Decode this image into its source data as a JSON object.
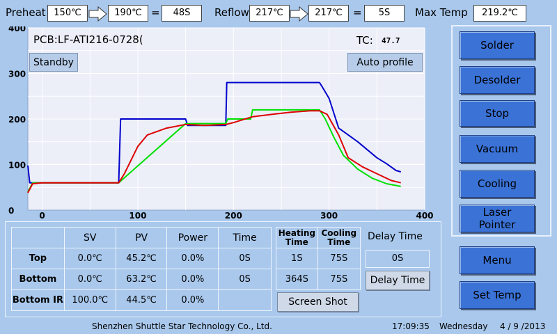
{
  "header": {
    "preheat_label": "Preheat",
    "preheat_start": "150℃",
    "preheat_end": "190℃",
    "equals": "=",
    "preheat_time": "48S",
    "reflow_label": "Reflow",
    "reflow_start": "217℃",
    "reflow_end": "217℃",
    "reflow_time": "5S",
    "maxtemp_label": "Max Temp",
    "maxtemp_value": "219.2℃"
  },
  "plot": {
    "pcb_label": "PCB:LF-ATI216-0728(",
    "tc_label": "TC:",
    "tc_value": "47.7",
    "standby_button": "Standby",
    "auto_profile_button": "Auto profile"
  },
  "chart_data": {
    "type": "line",
    "title": "",
    "xlabel": "",
    "ylabel": "",
    "xlim": [
      -15,
      400
    ],
    "ylim": [
      0,
      400
    ],
    "x_ticks": [
      "0",
      "100",
      "200",
      "300",
      "400"
    ],
    "y_ticks": [
      "0",
      "100",
      "200",
      "300",
      "400"
    ],
    "grid": true,
    "series": [
      {
        "color": "#0000cc",
        "points": [
          [
            -15,
            98
          ],
          [
            -13,
            60
          ],
          [
            0,
            60
          ],
          [
            80,
            60
          ],
          [
            82,
            200
          ],
          [
            150,
            200
          ],
          [
            152,
            186
          ],
          [
            192,
            186
          ],
          [
            193,
            280
          ],
          [
            290,
            280
          ],
          [
            293,
            270
          ],
          [
            300,
            245
          ],
          [
            310,
            180
          ],
          [
            330,
            150
          ],
          [
            350,
            115
          ],
          [
            360,
            102
          ],
          [
            370,
            87
          ],
          [
            375,
            84
          ]
        ]
      },
      {
        "color": "#00e000",
        "points": [
          [
            -15,
            40
          ],
          [
            -10,
            60
          ],
          [
            80,
            60
          ],
          [
            150,
            190
          ],
          [
            192,
            190
          ],
          [
            194,
            200
          ],
          [
            218,
            200
          ],
          [
            220,
            220
          ],
          [
            290,
            220
          ],
          [
            296,
            200
          ],
          [
            305,
            160
          ],
          [
            315,
            120
          ],
          [
            330,
            90
          ],
          [
            345,
            70
          ],
          [
            360,
            58
          ],
          [
            375,
            52
          ]
        ]
      },
      {
        "color": "#dd0000",
        "points": [
          [
            -15,
            38
          ],
          [
            -10,
            58
          ],
          [
            0,
            60
          ],
          [
            80,
            60
          ],
          [
            86,
            80
          ],
          [
            100,
            140
          ],
          [
            110,
            165
          ],
          [
            130,
            180
          ],
          [
            150,
            188
          ],
          [
            170,
            186
          ],
          [
            192,
            188
          ],
          [
            200,
            192
          ],
          [
            220,
            205
          ],
          [
            240,
            210
          ],
          [
            260,
            215
          ],
          [
            280,
            218
          ],
          [
            290,
            218
          ],
          [
            298,
            210
          ],
          [
            310,
            165
          ],
          [
            320,
            115
          ],
          [
            335,
            95
          ],
          [
            350,
            80
          ],
          [
            365,
            65
          ],
          [
            375,
            60
          ]
        ]
      }
    ]
  },
  "side_buttons": [
    "Solder",
    "Desolder",
    "Stop",
    "Vacuum",
    "Cooling",
    "Laser Pointer"
  ],
  "menu_button": "Menu",
  "set_temp_button": "Set Temp",
  "table": {
    "headers": [
      "SV",
      "PV",
      "Power",
      "Time"
    ],
    "rows": [
      {
        "name": "Top",
        "sv": "0.0℃",
        "pv": "45.2℃",
        "power": "0.0%",
        "time": "0S"
      },
      {
        "name": "Bottom",
        "sv": "0.0℃",
        "pv": "63.2℃",
        "power": "0.0%",
        "time": "0S"
      },
      {
        "name": "Bottom IR",
        "sv": "100.0℃",
        "pv": "44.5℃",
        "power": "0.0%",
        "time": ""
      }
    ],
    "heat_cool_headers": [
      "Heating Time",
      "Cooling Time"
    ],
    "heat_cool_rows": [
      [
        "1S",
        "75S"
      ],
      [
        "364S",
        "75S"
      ]
    ],
    "screen_shot_button": "Screen Shot",
    "delay_time_label": "Delay Time",
    "delay_time_value": "0S",
    "delay_time_button": "Delay Time"
  },
  "footer": {
    "company": "Shenzhen Shuttle Star Technology Co., Ltd.",
    "time": "17:09:35",
    "weekday": "Wednesday",
    "date": "4 / 9 /2013"
  }
}
